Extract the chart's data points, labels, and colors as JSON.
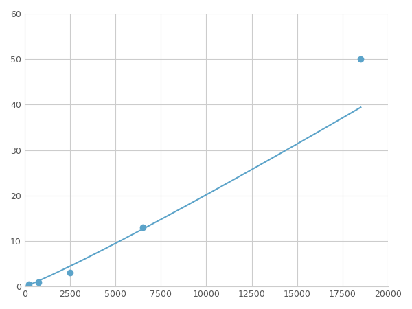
{
  "x_points": [
    250,
    750,
    2500,
    6500,
    18500
  ],
  "y_points": [
    0.5,
    1.0,
    3.0,
    13.0,
    50.0
  ],
  "line_color": "#5ba3c9",
  "marker_color": "#5ba3c9",
  "marker_size": 6,
  "line_width": 1.5,
  "xlim": [
    0,
    20000
  ],
  "ylim": [
    0,
    60
  ],
  "xticks": [
    0,
    2500,
    5000,
    7500,
    10000,
    12500,
    15000,
    17500,
    20000
  ],
  "yticks": [
    0,
    10,
    20,
    30,
    40,
    50,
    60
  ],
  "grid_color": "#cccccc",
  "background_color": "#ffffff",
  "figsize": [
    6.0,
    4.5
  ],
  "dpi": 100
}
